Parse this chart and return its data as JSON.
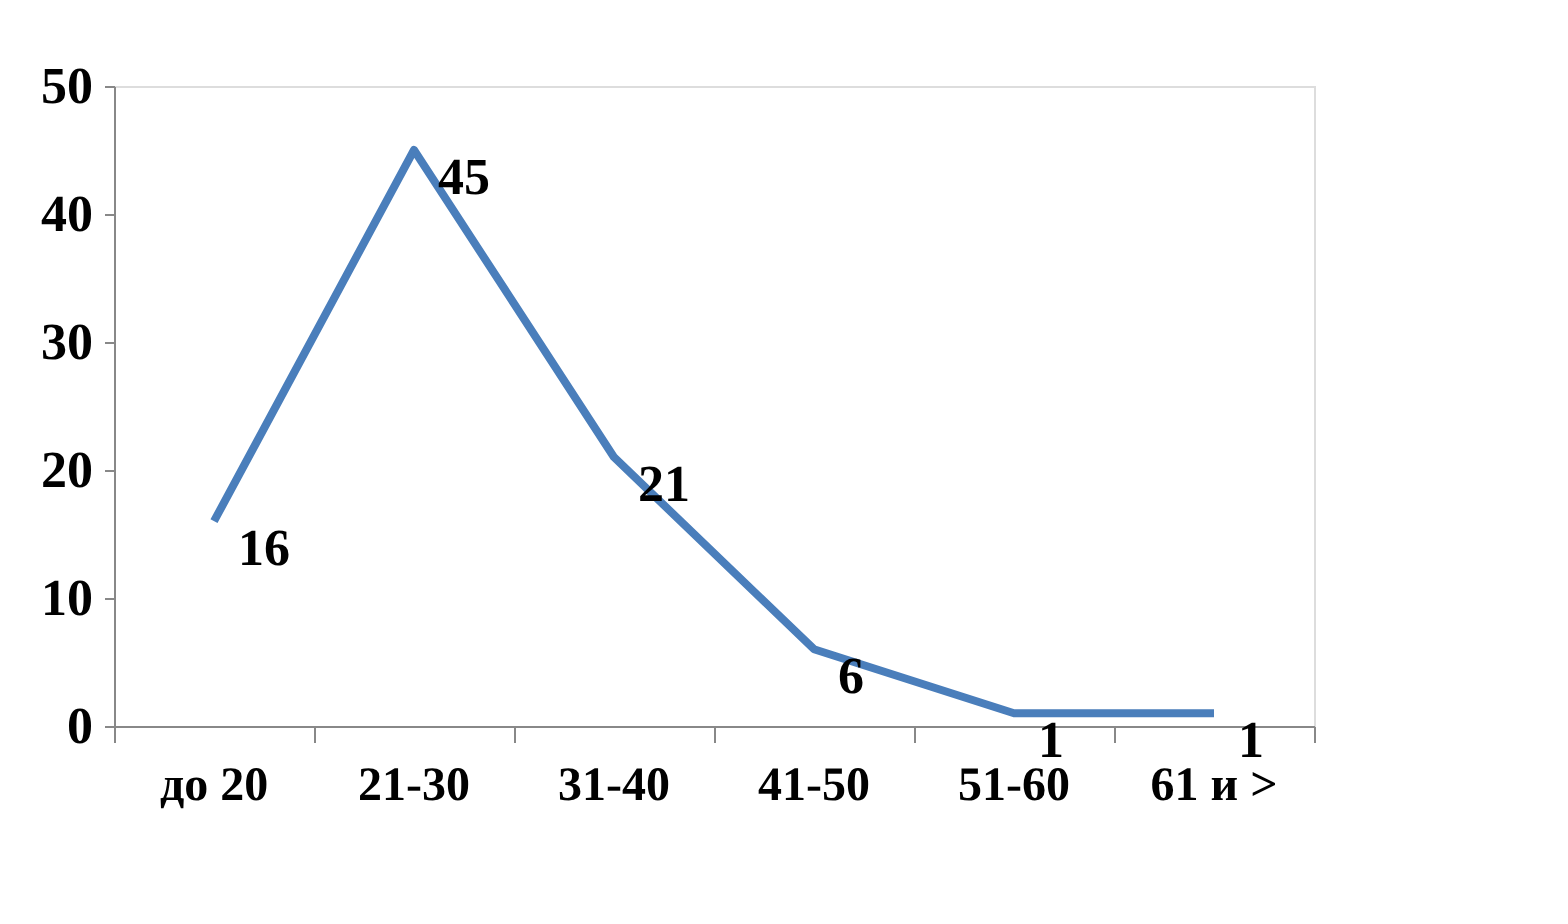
{
  "chart_data": {
    "type": "line",
    "categories": [
      "до 20",
      "21-30",
      "31-40",
      "41-50",
      "51-60",
      "61 и >"
    ],
    "values": [
      16,
      45,
      21,
      6,
      1,
      1
    ],
    "color": "#4a7ebb",
    "ylim": [
      0,
      50
    ],
    "yticks": [
      0,
      10,
      20,
      30,
      40,
      50
    ],
    "grid": false,
    "data_labels": true,
    "marker": "none",
    "line_style": "solid"
  }
}
